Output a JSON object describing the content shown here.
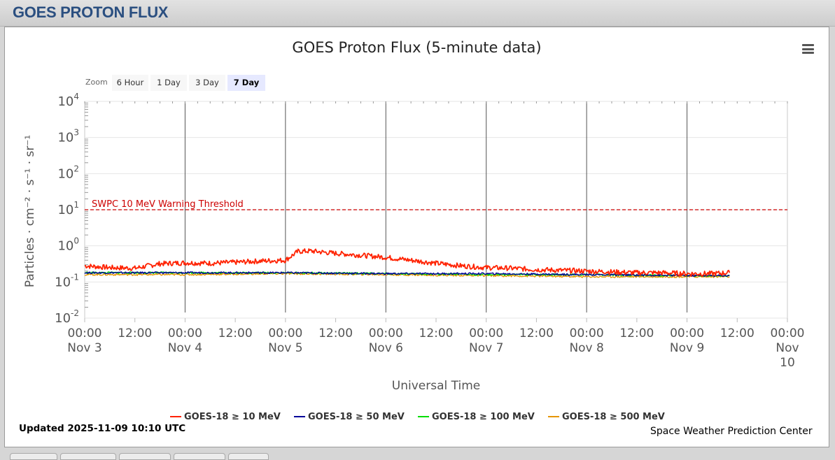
{
  "header": {
    "title": "GOES PROTON FLUX"
  },
  "menu": {
    "icon": "hamburger-menu-icon"
  },
  "zoom": {
    "label": "Zoom",
    "buttons": [
      {
        "label": "6 Hour",
        "active": false
      },
      {
        "label": "1 Day",
        "active": false
      },
      {
        "label": "3 Day",
        "active": false
      },
      {
        "label": "7 Day",
        "active": true
      }
    ]
  },
  "footer": {
    "updated": "Updated 2025-11-09 10:10 UTC",
    "credit": "Space Weather Prediction Center"
  },
  "tabs": [
    "",
    "",
    "",
    "",
    ""
  ],
  "chart_data": {
    "type": "line",
    "title": "GOES Proton Flux (5-minute data)",
    "xlabel": "Universal Time",
    "ylabel": "Particles · cm⁻² · s⁻¹ · sr⁻¹",
    "y_scale": "log",
    "ylim": [
      0.01,
      10000
    ],
    "y_ticks": [
      {
        "base": "10",
        "exp": "4"
      },
      {
        "base": "10",
        "exp": "3"
      },
      {
        "base": "10",
        "exp": "2"
      },
      {
        "base": "10",
        "exp": "1"
      },
      {
        "base": "10",
        "exp": "0"
      },
      {
        "base": "10",
        "exp": "-1"
      },
      {
        "base": "10",
        "exp": "-2"
      }
    ],
    "x_ticks": [
      {
        "time": "00:00",
        "date": "Nov 3"
      },
      {
        "time": "12:00",
        "date": ""
      },
      {
        "time": "00:00",
        "date": "Nov 4"
      },
      {
        "time": "12:00",
        "date": ""
      },
      {
        "time": "00:00",
        "date": "Nov 5"
      },
      {
        "time": "12:00",
        "date": ""
      },
      {
        "time": "00:00",
        "date": "Nov 6"
      },
      {
        "time": "12:00",
        "date": ""
      },
      {
        "time": "00:00",
        "date": "Nov 7"
      },
      {
        "time": "12:00",
        "date": ""
      },
      {
        "time": "00:00",
        "date": "Nov 8"
      },
      {
        "time": "12:00",
        "date": ""
      },
      {
        "time": "00:00",
        "date": "Nov 9"
      },
      {
        "time": "12:00",
        "date": ""
      },
      {
        "time": "00:00",
        "date": "Nov 10"
      }
    ],
    "xlim": [
      "2025-11-03 00:00",
      "2025-11-10 00:00"
    ],
    "threshold": {
      "label": "SWPC 10 MeV Warning Threshold",
      "value": 10,
      "color": "#cc0000"
    },
    "legend_position": "bottom-center",
    "series": [
      {
        "name": "GOES-18 ≥ 10 MeV",
        "color": "#ff2200",
        "x": [
          "2025-11-03 00:00",
          "2025-11-03 06:00",
          "2025-11-03 12:00",
          "2025-11-03 18:00",
          "2025-11-04 00:00",
          "2025-11-04 06:00",
          "2025-11-04 12:00",
          "2025-11-04 18:00",
          "2025-11-05 00:00",
          "2025-11-05 03:00",
          "2025-11-05 06:00",
          "2025-11-05 12:00",
          "2025-11-05 18:00",
          "2025-11-06 00:00",
          "2025-11-06 06:00",
          "2025-11-06 12:00",
          "2025-11-06 18:00",
          "2025-11-07 00:00",
          "2025-11-07 06:00",
          "2025-11-07 12:00",
          "2025-11-07 18:00",
          "2025-11-08 00:00",
          "2025-11-08 06:00",
          "2025-11-08 12:00",
          "2025-11-08 18:00",
          "2025-11-09 00:00",
          "2025-11-09 06:00",
          "2025-11-09 10:10"
        ],
        "values": [
          0.28,
          0.25,
          0.24,
          0.32,
          0.34,
          0.33,
          0.35,
          0.38,
          0.4,
          0.7,
          0.72,
          0.62,
          0.55,
          0.48,
          0.4,
          0.33,
          0.28,
          0.25,
          0.24,
          0.22,
          0.21,
          0.2,
          0.19,
          0.18,
          0.18,
          0.17,
          0.17,
          0.18
        ]
      },
      {
        "name": "GOES-18 ≥ 50 MeV",
        "color": "#000099",
        "x": [
          "2025-11-03 00:00",
          "2025-11-04 00:00",
          "2025-11-05 00:00",
          "2025-11-06 00:00",
          "2025-11-07 00:00",
          "2025-11-08 00:00",
          "2025-11-09 00:00",
          "2025-11-09 10:10"
        ],
        "values": [
          0.18,
          0.18,
          0.18,
          0.17,
          0.17,
          0.16,
          0.15,
          0.15
        ]
      },
      {
        "name": "GOES-18 ≥ 100 MeV",
        "color": "#00dd00",
        "x": [
          "2025-11-03 00:00",
          "2025-11-04 00:00",
          "2025-11-05 00:00",
          "2025-11-06 00:00",
          "2025-11-07 00:00",
          "2025-11-08 00:00",
          "2025-11-09 00:00",
          "2025-11-09 10:10"
        ],
        "values": [
          0.18,
          0.18,
          0.18,
          0.17,
          0.16,
          0.16,
          0.15,
          0.15
        ]
      },
      {
        "name": "GOES-18 ≥ 500 MeV",
        "color": "#e69500",
        "x": [
          "2025-11-03 00:00",
          "2025-11-04 00:00",
          "2025-11-05 00:00",
          "2025-11-06 00:00",
          "2025-11-07 00:00",
          "2025-11-08 00:00",
          "2025-11-09 00:00",
          "2025-11-09 10:10"
        ],
        "values": [
          0.16,
          0.16,
          0.17,
          0.16,
          0.15,
          0.14,
          0.14,
          0.14
        ]
      }
    ]
  }
}
